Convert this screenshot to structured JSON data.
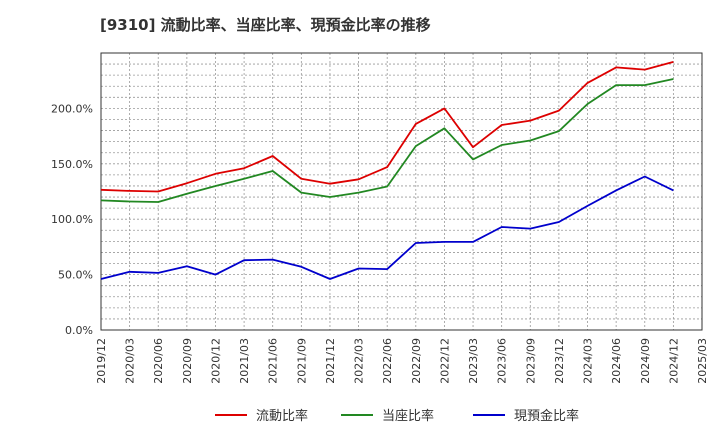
{
  "chart_data": {
    "type": "line",
    "title": "[9310]  流動比率、当座比率、現預金比率の推移",
    "xlabel": "",
    "ylabel": "",
    "ylim": [
      0,
      250
    ],
    "yticks": [
      0,
      50,
      100,
      150,
      200
    ],
    "y_tick_labels": [
      "0.0%",
      "50.0%",
      "100.0%",
      "150.0%",
      "200.0%"
    ],
    "x_tick_labels": [
      "2019/12",
      "2020/03",
      "2020/06",
      "2020/09",
      "2020/12",
      "2021/03",
      "2021/06",
      "2021/09",
      "2021/12",
      "2022/03",
      "2022/06",
      "2022/09",
      "2022/12",
      "2023/03",
      "2023/06",
      "2023/09",
      "2023/12",
      "2024/03",
      "2024/06",
      "2024/09",
      "2024/12",
      "2025/03"
    ],
    "categories": [
      "2019/12",
      "2020/03",
      "2020/06",
      "2020/09",
      "2020/12",
      "2021/03",
      "2021/06",
      "2021/09",
      "2021/12",
      "2022/03",
      "2022/06",
      "2022/09",
      "2022/12",
      "2023/03",
      "2023/06",
      "2023/09",
      "2023/12",
      "2024/03",
      "2024/06",
      "2024/09",
      "2024/12"
    ],
    "grid": true,
    "legend_position": "bottom-center",
    "series": [
      {
        "name": "流動比率",
        "color": "#dd0000",
        "values": [
          126.5,
          125.5,
          125.0,
          132.5,
          141.0,
          146.0,
          157.0,
          136.5,
          132.0,
          136.0,
          147.0,
          186.0,
          200.0,
          165.0,
          185.0,
          189.0,
          198.0,
          223.0,
          237.0,
          235.0,
          242.0
        ]
      },
      {
        "name": "当座比率",
        "color": "#228822",
        "values": [
          117.0,
          116.0,
          115.5,
          123.0,
          130.0,
          136.5,
          143.5,
          124.0,
          120.0,
          124.0,
          129.5,
          166.0,
          182.0,
          154.0,
          167.0,
          171.0,
          179.5,
          204.0,
          221.0,
          221.0,
          226.5
        ]
      },
      {
        "name": "現預金比率",
        "color": "#0000cc",
        "values": [
          46.0,
          52.5,
          51.5,
          57.5,
          50.0,
          63.0,
          63.5,
          57.0,
          46.0,
          55.5,
          55.0,
          78.5,
          79.5,
          79.5,
          93.0,
          91.5,
          97.5,
          112.0,
          126.0,
          138.5,
          126.0
        ]
      }
    ]
  }
}
